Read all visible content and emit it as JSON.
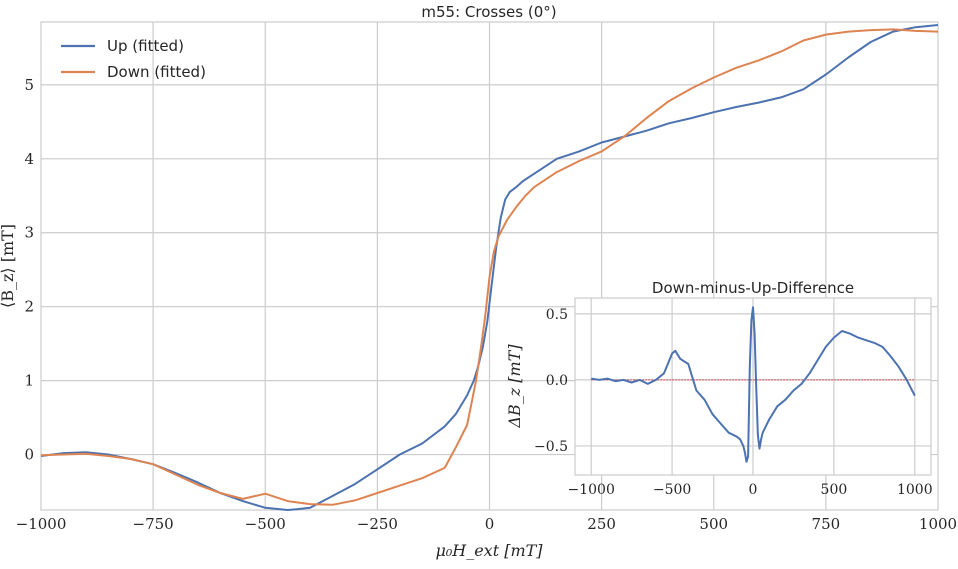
{
  "chart_data": [
    {
      "type": "line",
      "title": "m55: Crosses (0°)",
      "xlabel": "μ₀H_ext [mT]",
      "ylabel": "⟨B_z⟩ [mT]",
      "xlim": [
        -1000,
        1000
      ],
      "ylim": [
        -0.75,
        5.85
      ],
      "xticks": [
        -1000,
        -750,
        -500,
        -250,
        0,
        250,
        500,
        750,
        1000
      ],
      "xtick_labels": [
        "−1000",
        "−750",
        "−500",
        "−250",
        "0",
        "250",
        "500",
        "750",
        "1000"
      ],
      "yticks": [
        0,
        1,
        2,
        3,
        4,
        5
      ],
      "ytick_labels": [
        "0",
        "1",
        "2",
        "3",
        "4",
        "5"
      ],
      "grid": true,
      "legend": "top-left",
      "series": [
        {
          "name": "Up (fitted)",
          "color": "#4c72b0",
          "x": [
            -1000,
            -950,
            -900,
            -850,
            -800,
            -750,
            -700,
            -650,
            -600,
            -550,
            -500,
            -450,
            -430,
            -400,
            -350,
            -300,
            -250,
            -200,
            -150,
            -100,
            -75,
            -50,
            -35,
            -25,
            -15,
            -5,
            5,
            15,
            25,
            35,
            45,
            60,
            75,
            100,
            150,
            200,
            250,
            300,
            350,
            400,
            450,
            500,
            550,
            600,
            650,
            700,
            750,
            800,
            850,
            900,
            950,
            1000
          ],
          "y": [
            -0.02,
            0.02,
            0.03,
            0.0,
            -0.06,
            -0.13,
            -0.25,
            -0.38,
            -0.52,
            -0.63,
            -0.72,
            -0.75,
            -0.74,
            -0.72,
            -0.56,
            -0.4,
            -0.2,
            0.0,
            0.15,
            0.38,
            0.55,
            0.8,
            1.0,
            1.2,
            1.45,
            1.8,
            2.3,
            2.8,
            3.2,
            3.45,
            3.55,
            3.62,
            3.7,
            3.8,
            4.0,
            4.1,
            4.22,
            4.3,
            4.38,
            4.48,
            4.55,
            4.63,
            4.7,
            4.76,
            4.83,
            4.94,
            5.14,
            5.37,
            5.58,
            5.72,
            5.78,
            5.81
          ]
        },
        {
          "name": "Down (fitted)",
          "color": "#dd8452",
          "x": [
            -1000,
            -950,
            -900,
            -850,
            -800,
            -750,
            -700,
            -650,
            -600,
            -550,
            -500,
            -450,
            -400,
            -350,
            -300,
            -250,
            -200,
            -150,
            -100,
            -75,
            -50,
            -40,
            -30,
            -20,
            -10,
            0,
            10,
            20,
            40,
            60,
            80,
            100,
            150,
            200,
            250,
            300,
            350,
            400,
            450,
            500,
            550,
            600,
            650,
            700,
            750,
            800,
            850,
            900,
            950,
            1000
          ],
          "y": [
            -0.01,
            0.0,
            0.01,
            -0.02,
            -0.06,
            -0.13,
            -0.27,
            -0.41,
            -0.52,
            -0.6,
            -0.53,
            -0.63,
            -0.67,
            -0.68,
            -0.62,
            -0.52,
            -0.42,
            -0.32,
            -0.18,
            0.1,
            0.4,
            0.7,
            1.0,
            1.4,
            1.85,
            2.4,
            2.75,
            2.95,
            3.18,
            3.35,
            3.5,
            3.62,
            3.82,
            3.97,
            4.1,
            4.3,
            4.55,
            4.78,
            4.95,
            5.1,
            5.23,
            5.33,
            5.45,
            5.6,
            5.68,
            5.72,
            5.74,
            5.75,
            5.73,
            5.72
          ]
        }
      ]
    },
    {
      "type": "line",
      "title": "Down-minus-Up-Difference",
      "xlabel": "",
      "ylabel": "ΔB_z [mT]",
      "xlim": [
        -1100,
        1100
      ],
      "ylim": [
        -0.72,
        0.62
      ],
      "xticks": [
        -1000,
        -500,
        0,
        500,
        1000
      ],
      "xtick_labels": [
        "−1000",
        "−500",
        "0",
        "500",
        "1000"
      ],
      "yticks": [
        -0.5,
        0.0,
        0.5
      ],
      "ytick_labels": [
        "−0.5",
        "0.0",
        "0.5"
      ],
      "grid": true,
      "zero_line_color": "#c44e52",
      "series": [
        {
          "color": "#4c72b0",
          "x": [
            -1000,
            -950,
            -900,
            -850,
            -800,
            -750,
            -700,
            -650,
            -600,
            -550,
            -500,
            -480,
            -450,
            -400,
            -350,
            -300,
            -250,
            -200,
            -150,
            -100,
            -80,
            -60,
            -50,
            -40,
            -30,
            -20,
            -10,
            0,
            10,
            20,
            30,
            40,
            50,
            60,
            80,
            100,
            150,
            200,
            250,
            300,
            350,
            400,
            450,
            500,
            550,
            600,
            650,
            700,
            750,
            800,
            850,
            900,
            950,
            1000
          ],
          "y": [
            0.01,
            0.0,
            0.01,
            -0.01,
            0.0,
            -0.02,
            0.0,
            -0.03,
            0.0,
            0.05,
            0.2,
            0.22,
            0.16,
            0.12,
            -0.08,
            -0.15,
            -0.26,
            -0.33,
            -0.4,
            -0.43,
            -0.45,
            -0.5,
            -0.55,
            -0.62,
            -0.58,
            0.1,
            0.45,
            0.55,
            0.35,
            -0.05,
            -0.42,
            -0.52,
            -0.45,
            -0.4,
            -0.35,
            -0.3,
            -0.2,
            -0.15,
            -0.08,
            -0.03,
            0.05,
            0.15,
            0.25,
            0.32,
            0.37,
            0.35,
            0.32,
            0.3,
            0.28,
            0.25,
            0.18,
            0.1,
            0.0,
            -0.12
          ]
        }
      ]
    }
  ]
}
